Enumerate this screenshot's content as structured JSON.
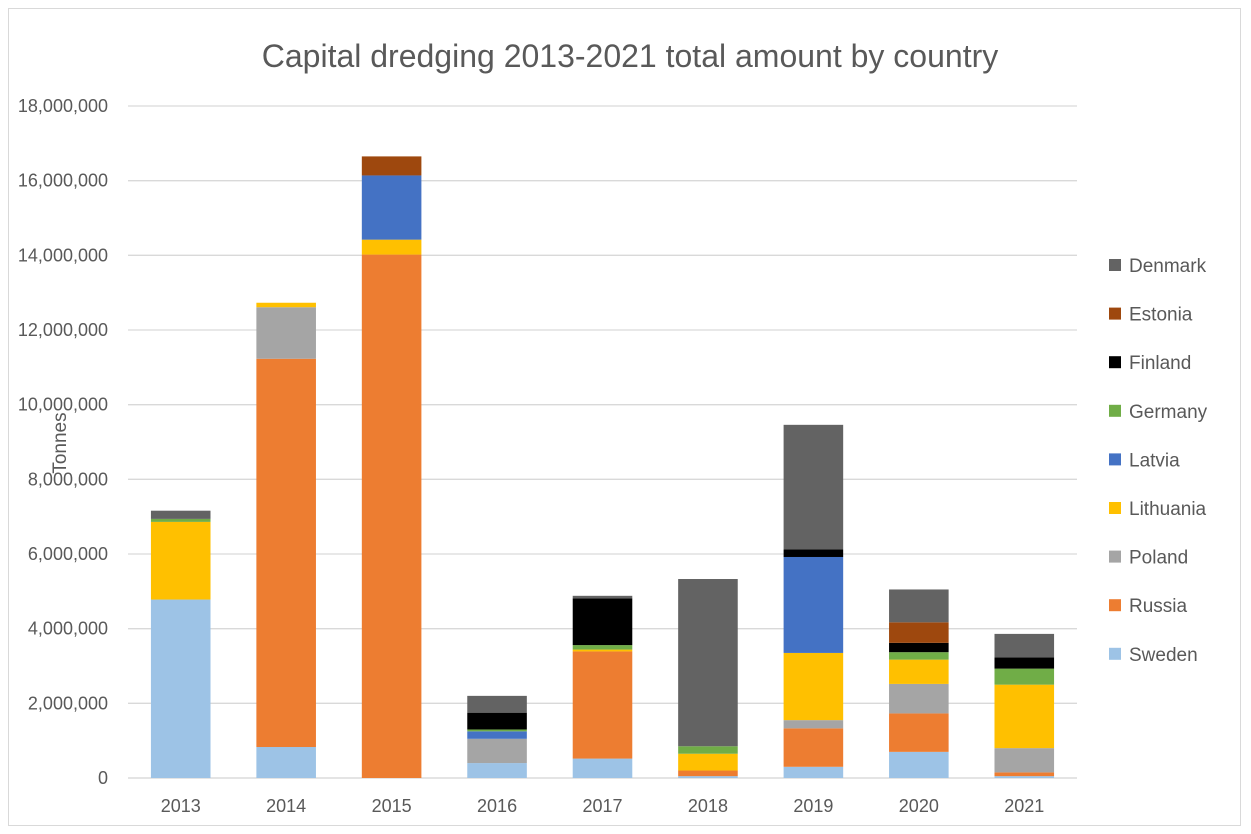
{
  "chart_data": {
    "type": "bar",
    "stacked": true,
    "title": "Capital dredging 2013-2021 total amount by country",
    "xlabel": "",
    "ylabel": "Tonnes",
    "ylim": [
      0,
      18000000
    ],
    "yticks": [
      0,
      2000000,
      4000000,
      6000000,
      8000000,
      10000000,
      12000000,
      14000000,
      16000000,
      18000000
    ],
    "ytick_labels": [
      "0",
      "2,000,000",
      "4,000,000",
      "6,000,000",
      "8,000,000",
      "10,000,000",
      "12,000,000",
      "14,000,000",
      "16,000,000",
      "18,000,000"
    ],
    "grid": true,
    "legend_position": "right",
    "categories": [
      "2013",
      "2014",
      "2015",
      "2016",
      "2017",
      "2018",
      "2019",
      "2020",
      "2021"
    ],
    "series": [
      {
        "name": "Sweden",
        "color": "#9DC3E6",
        "values": [
          4780000,
          830000,
          0,
          400000,
          520000,
          50000,
          300000,
          700000,
          50000
        ]
      },
      {
        "name": "Russia",
        "color": "#ED7D31",
        "values": [
          0,
          10400000,
          14020000,
          0,
          2870000,
          150000,
          1030000,
          1030000,
          100000
        ]
      },
      {
        "name": "Poland",
        "color": "#A5A5A5",
        "values": [
          0,
          1380000,
          0,
          650000,
          0,
          0,
          220000,
          790000,
          650000
        ]
      },
      {
        "name": "Lithuania",
        "color": "#FFC000",
        "values": [
          2080000,
          120000,
          400000,
          0,
          50000,
          450000,
          1800000,
          650000,
          1700000
        ]
      },
      {
        "name": "Latvia",
        "color": "#4472C4",
        "values": [
          0,
          0,
          1720000,
          200000,
          0,
          0,
          2570000,
          0,
          0
        ]
      },
      {
        "name": "Germany",
        "color": "#70AD47",
        "values": [
          80000,
          0,
          0,
          50000,
          120000,
          200000,
          0,
          200000,
          430000
        ]
      },
      {
        "name": "Finland",
        "color": "#000000",
        "values": [
          0,
          0,
          0,
          450000,
          1250000,
          0,
          200000,
          250000,
          300000
        ]
      },
      {
        "name": "Estonia",
        "color": "#9E480E",
        "values": [
          0,
          0,
          510000,
          0,
          0,
          0,
          0,
          550000,
          0
        ]
      },
      {
        "name": "Denmark",
        "color": "#636363",
        "values": [
          220000,
          0,
          0,
          450000,
          70000,
          4480000,
          3340000,
          880000,
          630000
        ]
      }
    ],
    "legend_order": [
      "Denmark",
      "Estonia",
      "Finland",
      "Germany",
      "Latvia",
      "Lithuania",
      "Poland",
      "Russia",
      "Sweden"
    ]
  }
}
